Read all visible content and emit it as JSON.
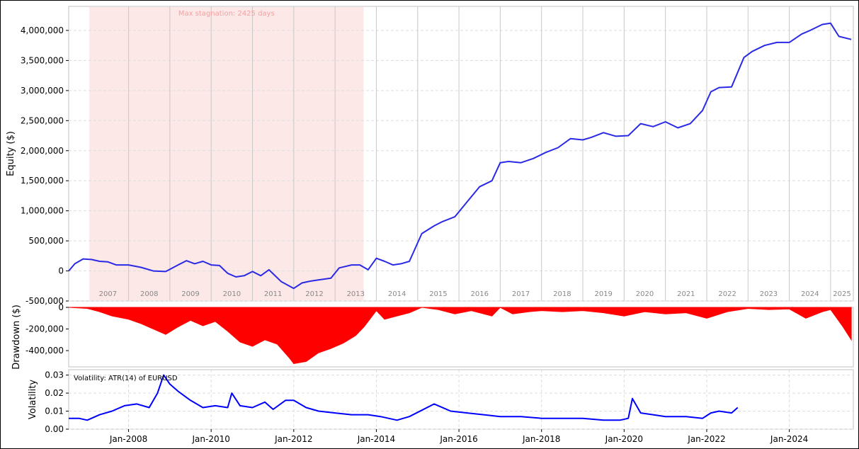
{
  "colors": {
    "equity_line": "#2a2ae6",
    "drawdown_fill": "#ff0000",
    "volatility_line": "#0000ff",
    "stagnation_fill": "#fde8e8",
    "stagnation_text": "#f4a0a0",
    "grid": "#dddddd",
    "year_divider": "#c8c8c8"
  },
  "chart_data": [
    {
      "type": "line",
      "panel": "equity",
      "ylabel": "Equity ($)",
      "ylim": [
        -500000,
        4400000
      ],
      "yticks": [
        -500000,
        0,
        500000,
        1000000,
        1500000,
        2000000,
        2500000,
        3000000,
        3500000,
        4000000
      ],
      "ytick_labels": [
        "-500,000",
        "0",
        "500,000",
        "1,000,000",
        "1,500,000",
        "2,000,000",
        "2,500,000",
        "3,000,000",
        "3,500,000",
        "4,000,000"
      ],
      "years": [
        "2007",
        "2008",
        "2009",
        "2010",
        "2011",
        "2012",
        "2013",
        "2014",
        "2015",
        "2016",
        "2017",
        "2018",
        "2019",
        "2020",
        "2021",
        "2022",
        "2023",
        "2024",
        "2025"
      ],
      "stagnation_label": "Max stagnation: 2425 days",
      "stagnation_range": [
        2007.05,
        2013.69
      ],
      "x": [
        2006.55,
        2006.7,
        2006.9,
        2007.1,
        2007.3,
        2007.5,
        2007.7,
        2008.0,
        2008.3,
        2008.6,
        2008.9,
        2009.2,
        2009.4,
        2009.6,
        2009.8,
        2010.0,
        2010.2,
        2010.4,
        2010.6,
        2010.8,
        2011.0,
        2011.2,
        2011.4,
        2011.7,
        2012.0,
        2012.2,
        2012.4,
        2012.6,
        2012.9,
        2013.1,
        2013.4,
        2013.6,
        2013.8,
        2014.0,
        2014.2,
        2014.4,
        2014.6,
        2014.8,
        2015.1,
        2015.4,
        2015.6,
        2015.9,
        2016.2,
        2016.5,
        2016.8,
        2017.0,
        2017.2,
        2017.5,
        2017.8,
        2018.1,
        2018.4,
        2018.7,
        2019.0,
        2019.2,
        2019.5,
        2019.8,
        2020.1,
        2020.4,
        2020.7,
        2021.0,
        2021.3,
        2021.6,
        2021.9,
        2022.1,
        2022.3,
        2022.6,
        2022.9,
        2023.1,
        2023.4,
        2023.7,
        2024.0,
        2024.3,
        2024.5,
        2024.8,
        2025.0,
        2025.2,
        2025.5
      ],
      "y": [
        0,
        120000,
        200000,
        190000,
        160000,
        150000,
        100000,
        100000,
        60000,
        0,
        -10000,
        100000,
        170000,
        120000,
        160000,
        100000,
        90000,
        -40000,
        -100000,
        -80000,
        -10000,
        -80000,
        20000,
        -180000,
        -290000,
        -200000,
        -170000,
        -150000,
        -120000,
        50000,
        100000,
        100000,
        20000,
        210000,
        160000,
        100000,
        120000,
        160000,
        620000,
        750000,
        820000,
        900000,
        1150000,
        1400000,
        1500000,
        1800000,
        1820000,
        1800000,
        1870000,
        1970000,
        2050000,
        2200000,
        2180000,
        2220000,
        2300000,
        2240000,
        2250000,
        2450000,
        2400000,
        2480000,
        2380000,
        2450000,
        2670000,
        2980000,
        3050000,
        3060000,
        3550000,
        3650000,
        3750000,
        3800000,
        3800000,
        3940000,
        4000000,
        4100000,
        4120000,
        3900000,
        3850000
      ]
    },
    {
      "type": "area",
      "panel": "drawdown",
      "ylabel": "Drawdown ($)",
      "ylim": [
        -550000,
        0
      ],
      "yticks": [
        0,
        -200000,
        -400000
      ],
      "ytick_labels": [
        "0",
        "-200,000",
        "-400,000"
      ],
      "x": [
        2006.55,
        2007.0,
        2007.3,
        2007.6,
        2008.0,
        2008.3,
        2008.6,
        2008.9,
        2009.2,
        2009.5,
        2009.8,
        2010.1,
        2010.4,
        2010.7,
        2011.0,
        2011.3,
        2011.6,
        2011.9,
        2012.0,
        2012.3,
        2012.6,
        2012.9,
        2013.2,
        2013.5,
        2013.7,
        2014.0,
        2014.2,
        2014.5,
        2014.8,
        2015.1,
        2015.5,
        2015.9,
        2016.3,
        2016.8,
        2017.0,
        2017.3,
        2017.7,
        2018.0,
        2018.5,
        2019.0,
        2019.5,
        2020.0,
        2020.5,
        2021.0,
        2021.5,
        2022.0,
        2022.5,
        2023.0,
        2023.5,
        2024.0,
        2024.4,
        2024.8,
        2025.0,
        2025.3,
        2025.5
      ],
      "y": [
        0,
        -10000,
        -40000,
        -80000,
        -110000,
        -150000,
        -200000,
        -250000,
        -180000,
        -120000,
        -170000,
        -130000,
        -220000,
        -320000,
        -360000,
        -300000,
        -340000,
        -470000,
        -520000,
        -500000,
        -420000,
        -380000,
        -330000,
        -260000,
        -180000,
        -30000,
        -110000,
        -80000,
        -50000,
        0,
        -20000,
        -60000,
        -30000,
        -80000,
        0,
        -60000,
        -40000,
        -30000,
        -40000,
        -30000,
        -50000,
        -80000,
        -40000,
        -60000,
        -50000,
        -100000,
        -40000,
        -10000,
        -20000,
        -15000,
        -100000,
        -40000,
        -20000,
        -180000,
        -300000
      ]
    },
    {
      "type": "line",
      "panel": "volatility",
      "ylabel": "Volatility",
      "annotation": "Volatility: ATR(14) of EURUSD",
      "ylim": [
        0,
        0.033
      ],
      "yticks": [
        0,
        0.01,
        0.02,
        0.03
      ],
      "ytick_labels": [
        "0.00",
        "0.01",
        "0.02",
        "0.03"
      ],
      "xtick_labels": [
        "Jan-2008",
        "Jan-2010",
        "Jan-2012",
        "Jan-2014",
        "Jan-2016",
        "Jan-2018",
        "Jan-2020",
        "Jan-2022",
        "Jan-2024"
      ],
      "xticks": [
        2008,
        2010,
        2012,
        2014,
        2016,
        2018,
        2020,
        2022,
        2024
      ],
      "x": [
        2006.55,
        2006.8,
        2007.0,
        2007.3,
        2007.6,
        2007.9,
        2008.2,
        2008.5,
        2008.7,
        2008.85,
        2009.0,
        2009.2,
        2009.5,
        2009.8,
        2010.1,
        2010.4,
        2010.5,
        2010.7,
        2011.0,
        2011.3,
        2011.5,
        2011.8,
        2012.0,
        2012.3,
        2012.6,
        2013.0,
        2013.4,
        2013.8,
        2014.1,
        2014.5,
        2014.8,
        2015.4,
        2015.8,
        2016.2,
        2016.6,
        2017.0,
        2017.5,
        2018.0,
        2018.5,
        2019.0,
        2019.5,
        2019.9,
        2020.1,
        2020.2,
        2020.4,
        2020.7,
        2021.0,
        2021.5,
        2021.9,
        2022.1,
        2022.3,
        2022.6,
        2022.75
      ],
      "y": [
        0.006,
        0.006,
        0.005,
        0.008,
        0.01,
        0.013,
        0.014,
        0.012,
        0.02,
        0.03,
        0.025,
        0.021,
        0.016,
        0.012,
        0.013,
        0.012,
        0.02,
        0.013,
        0.012,
        0.015,
        0.011,
        0.016,
        0.016,
        0.012,
        0.01,
        0.009,
        0.008,
        0.008,
        0.007,
        0.005,
        0.007,
        0.014,
        0.01,
        0.009,
        0.008,
        0.007,
        0.007,
        0.006,
        0.006,
        0.006,
        0.005,
        0.005,
        0.006,
        0.017,
        0.009,
        0.008,
        0.007,
        0.007,
        0.006,
        0.009,
        0.01,
        0.009,
        0.012
      ]
    }
  ]
}
